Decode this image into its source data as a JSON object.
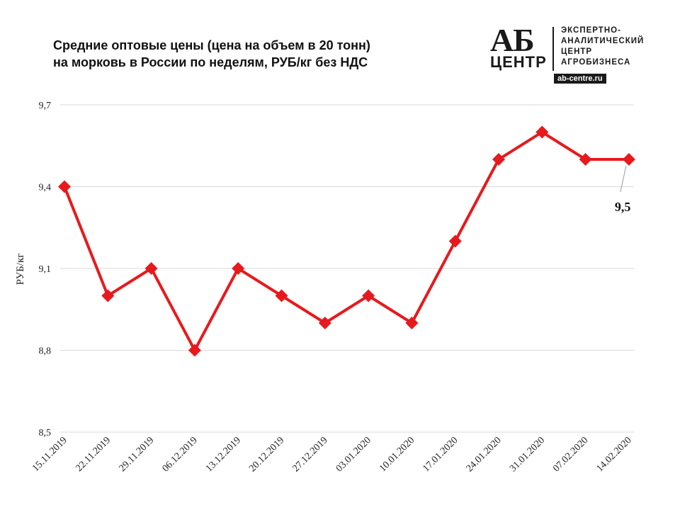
{
  "title_lines": [
    "Средние оптовые цены (цена на объем в 20 тонн)",
    "на морковь в России по неделям, РУБ/кг без НДС"
  ],
  "logo": {
    "ab": "АБ",
    "centr": "ЦЕНТР",
    "text_lines": [
      "ЭКСПЕРТНО-",
      "АНАЛИТИЧЕСКИЙ",
      "ЦЕНТР",
      "АГРОБИЗНЕСА"
    ],
    "url": "ab-centre.ru"
  },
  "chart_data": {
    "type": "line",
    "title": "Средние оптовые цены (цена на объем в 20 тонн) на морковь в России по неделям, РУБ/кг без НДС",
    "xlabel": "",
    "ylabel": "РУБ/кг",
    "categories": [
      "15.11.2019",
      "22.11.2019",
      "29.11.2019",
      "06.12.2019",
      "13.12.2019",
      "20.12.2019",
      "27.12.2019",
      "03.01.2020",
      "10.01.2020",
      "17.01.2020",
      "24.01.2020",
      "31.01.2020",
      "07.02.2020",
      "14.02.2020"
    ],
    "series": [
      {
        "values": [
          9.4,
          9.0,
          9.1,
          8.8,
          9.1,
          9.0,
          8.9,
          9.0,
          8.9,
          9.2,
          9.5,
          9.6,
          9.5,
          9.5
        ],
        "color": "#e8191c"
      }
    ],
    "ylim": [
      8.5,
      9.7
    ],
    "yticks": [
      "8,5",
      "8,8",
      "9,1",
      "9,4",
      "9,7"
    ],
    "ytick_values": [
      8.5,
      8.8,
      9.1,
      9.4,
      9.7
    ],
    "grid": true,
    "legend": "none",
    "annotations": [
      {
        "category": "14.02.2020",
        "text": "9,5"
      }
    ]
  }
}
